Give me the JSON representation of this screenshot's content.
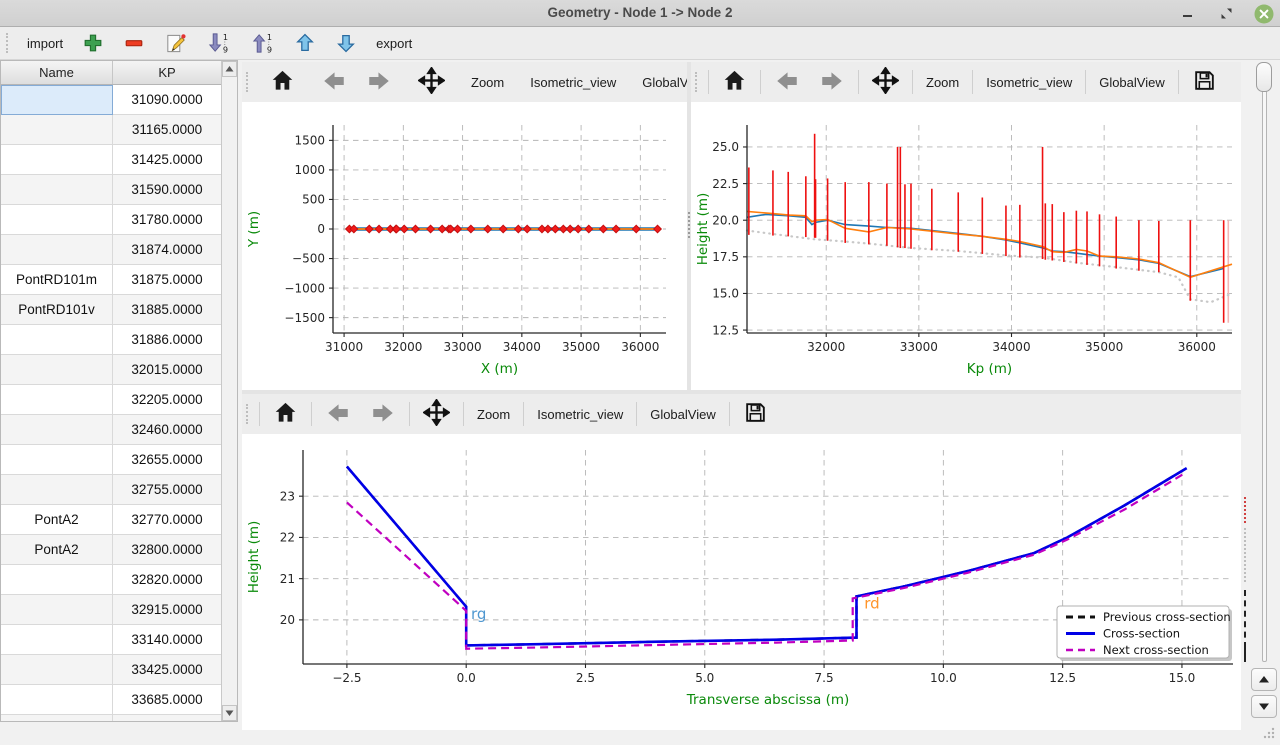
{
  "window": {
    "title": "Geometry - Node 1 -> Node 2"
  },
  "main_toolbar": {
    "items": [
      {
        "name": "import-button",
        "type": "text",
        "label": "import"
      },
      {
        "name": "add-row-button",
        "type": "icon",
        "icon": "add-icon"
      },
      {
        "name": "remove-row-button",
        "type": "icon",
        "icon": "remove-icon"
      },
      {
        "name": "edit-button",
        "type": "icon",
        "icon": "edit-icon"
      },
      {
        "name": "sort-descending-button",
        "type": "icon",
        "icon": "sort-descending-icon"
      },
      {
        "name": "sort-ascending-button",
        "type": "icon",
        "icon": "sort-ascending-icon"
      },
      {
        "name": "move-up-button",
        "type": "icon",
        "icon": "move-up-icon"
      },
      {
        "name": "move-down-button",
        "type": "icon",
        "icon": "move-down-icon"
      },
      {
        "name": "export-button",
        "type": "text",
        "label": "export"
      }
    ]
  },
  "table": {
    "columns": [
      "Name",
      "KP"
    ],
    "selected_cell": {
      "row": 0,
      "col": "name"
    },
    "rows": [
      {
        "name": "",
        "kp": "31090.0000"
      },
      {
        "name": "",
        "kp": "31165.0000"
      },
      {
        "name": "",
        "kp": "31425.0000"
      },
      {
        "name": "",
        "kp": "31590.0000"
      },
      {
        "name": "",
        "kp": "31780.0000"
      },
      {
        "name": "",
        "kp": "31874.0000"
      },
      {
        "name": "PontRD101m",
        "kp": "31875.0000"
      },
      {
        "name": "PontRD101v",
        "kp": "31885.0000"
      },
      {
        "name": "",
        "kp": "31886.0000"
      },
      {
        "name": "",
        "kp": "32015.0000"
      },
      {
        "name": "",
        "kp": "32205.0000"
      },
      {
        "name": "",
        "kp": "32460.0000"
      },
      {
        "name": "",
        "kp": "32655.0000"
      },
      {
        "name": "",
        "kp": "32755.0000"
      },
      {
        "name": "PontA2",
        "kp": "32770.0000"
      },
      {
        "name": "PontA2",
        "kp": "32800.0000"
      },
      {
        "name": "",
        "kp": "32820.0000"
      },
      {
        "name": "",
        "kp": "32915.0000"
      },
      {
        "name": "",
        "kp": "33140.0000"
      },
      {
        "name": "",
        "kp": "33425.0000"
      },
      {
        "name": "",
        "kp": "33685.0000"
      },
      {
        "name": "",
        "kp": ""
      }
    ]
  },
  "plot_toolbar": {
    "zoom_label": "Zoom",
    "isometric_label": "Isometric_view",
    "globalview_label": "GlobalView",
    "overflow_label": "»"
  },
  "colors": {
    "axis_label_green": "#0a8a0a",
    "mpl_blue": "#1f77b4",
    "mpl_orange": "#ff7f0e",
    "red": "#ee1010",
    "cross_blue": "#0000e6",
    "next_magenta": "#c000c0",
    "prev_black": "#111111",
    "selection_blue": "#dcebfa"
  },
  "chart_data": [
    {
      "id": "plan",
      "type": "line",
      "xlabel": "X (m)",
      "ylabel": "Y (m)",
      "xlim": [
        30813,
        36433
      ],
      "ylim": [
        -1760,
        1760
      ],
      "xticks": [
        31000,
        32000,
        33000,
        34000,
        35000,
        36000
      ],
      "xtick_labels": [
        "31000",
        "32000",
        "33000",
        "34000",
        "35000",
        "36000"
      ],
      "yticks": [
        -1500,
        -1000,
        -500,
        0,
        500,
        1000,
        1500
      ],
      "ytick_labels": [
        "−1500",
        "−1000",
        "−500",
        "0",
        "500",
        "1000",
        "1500"
      ],
      "margins": {
        "l": 91,
        "r": 21,
        "t": 23,
        "b": 57
      },
      "series": [
        {
          "name": "river-axis-blue",
          "color": "#1f77b4",
          "width": 3.6,
          "x": [
            31090,
            36290
          ],
          "y": [
            0,
            0
          ]
        },
        {
          "name": "river-axis-orange",
          "color": "#ff7f0e",
          "width": 1.8,
          "x": [
            31090,
            36290
          ],
          "y": [
            0,
            0
          ]
        }
      ],
      "markers": {
        "name": "cross-section-positions",
        "shape": "diamond",
        "color": "#f21b1b",
        "edge": "#c40f0f",
        "size": 3.8,
        "y": 0,
        "x": [
          31090,
          31165,
          31425,
          31590,
          31780,
          31875,
          31885,
          32015,
          32205,
          32460,
          32655,
          32770,
          32800,
          32915,
          33140,
          33425,
          33685,
          33940,
          34090,
          34340,
          34440,
          34565,
          34700,
          34815,
          34950,
          35130,
          35375,
          35590,
          35930,
          36290
        ]
      }
    },
    {
      "id": "profile",
      "type": "line",
      "xlabel": "Kp (m)",
      "ylabel": "Height (m)",
      "xlim": [
        31145,
        36380
      ],
      "ylim": [
        12.3,
        26.5
      ],
      "xticks": [
        32000,
        33000,
        34000,
        35000,
        36000
      ],
      "xtick_labels": [
        "32000",
        "33000",
        "34000",
        "35000",
        "36000"
      ],
      "yticks": [
        12.5,
        15.0,
        17.5,
        20.0,
        22.5,
        25.0
      ],
      "ytick_labels": [
        "12.5",
        "15.0",
        "17.5",
        "20.0",
        "22.5",
        "25.0"
      ],
      "margins": {
        "l": 56,
        "r": 9,
        "t": 23,
        "b": 57
      },
      "vline_color": "#ee1010",
      "vlines_light": {
        "color": "#f3b6b6",
        "data": [
          [
            36340,
            13.0,
            20.0
          ]
        ]
      },
      "vlines": [
        [
          31165,
          19.0,
          23.6
        ],
        [
          31425,
          18.95,
          23.4
        ],
        [
          31590,
          18.9,
          23.3
        ],
        [
          31780,
          18.85,
          23.0
        ],
        [
          31875,
          18.8,
          25.9
        ],
        [
          31885,
          18.8,
          22.8
        ],
        [
          32015,
          18.6,
          22.85
        ],
        [
          32205,
          18.45,
          22.6
        ],
        [
          32460,
          18.35,
          22.6
        ],
        [
          32655,
          18.25,
          22.5
        ],
        [
          32770,
          18.15,
          25.0
        ],
        [
          32800,
          18.1,
          25.0
        ],
        [
          32850,
          18.1,
          22.45
        ],
        [
          32915,
          18.05,
          22.5
        ],
        [
          33140,
          17.95,
          22.15
        ],
        [
          33425,
          17.85,
          21.9
        ],
        [
          33685,
          17.7,
          21.55
        ],
        [
          33940,
          17.55,
          21.0
        ],
        [
          34090,
          17.45,
          21.05
        ],
        [
          34335,
          17.35,
          25.0
        ],
        [
          34365,
          17.3,
          21.15
        ],
        [
          34440,
          17.25,
          21.1
        ],
        [
          34565,
          17.15,
          20.55
        ],
        [
          34700,
          17.05,
          20.65
        ],
        [
          34815,
          16.95,
          20.6
        ],
        [
          34950,
          16.85,
          20.4
        ],
        [
          35130,
          16.7,
          20.25
        ],
        [
          35375,
          16.55,
          20.0
        ],
        [
          35590,
          16.45,
          19.95
        ],
        [
          35930,
          14.5,
          20.0
        ],
        [
          36290,
          13.0,
          20.0
        ]
      ],
      "series": [
        {
          "name": "bottom-dotted",
          "color": "#c8c8c8",
          "width": 2.2,
          "dash": "0.6 5",
          "cap": "round",
          "x": [
            31145,
            31500,
            31875,
            32205,
            32460,
            32915,
            33425,
            33940,
            34340,
            34700,
            35130,
            35590,
            35800,
            35930,
            36150,
            36380
          ],
          "y": [
            19.3,
            19.0,
            18.7,
            18.55,
            18.4,
            18.1,
            17.9,
            17.6,
            17.45,
            17.1,
            16.8,
            16.45,
            16.1,
            14.6,
            14.4,
            15.0
          ]
        },
        {
          "name": "left-bank-blue",
          "color": "#1f77b4",
          "width": 1.6,
          "x": [
            31145,
            31350,
            31600,
            31780,
            31845,
            31885,
            32015,
            32205,
            32460,
            32655,
            32915,
            33140,
            33425,
            33685,
            33940,
            34090,
            34340,
            34440,
            34565,
            34700,
            34815,
            34950,
            35130,
            35375,
            35590,
            35930,
            36290
          ],
          "y": [
            20.2,
            20.4,
            20.3,
            20.2,
            19.7,
            19.85,
            20.0,
            19.7,
            19.6,
            19.5,
            19.45,
            19.3,
            19.1,
            18.9,
            18.65,
            18.45,
            18.1,
            17.9,
            17.85,
            17.75,
            17.65,
            17.55,
            17.45,
            17.3,
            17.05,
            16.15,
            16.7
          ]
        },
        {
          "name": "right-bank-orange",
          "color": "#ff7f0e",
          "width": 1.6,
          "x": [
            31145,
            31425,
            31600,
            31780,
            31845,
            31885,
            32015,
            32205,
            32460,
            32655,
            32915,
            33140,
            33425,
            33685,
            33940,
            34090,
            34340,
            34440,
            34565,
            34700,
            34815,
            34950,
            35130,
            35375,
            35590,
            35930,
            36380
          ],
          "y": [
            20.6,
            20.45,
            20.35,
            20.3,
            19.9,
            20.0,
            20.05,
            19.45,
            19.2,
            19.5,
            19.4,
            19.25,
            19.05,
            18.9,
            18.7,
            18.55,
            18.2,
            17.85,
            17.8,
            18.0,
            17.9,
            17.55,
            17.5,
            17.35,
            17.1,
            16.1,
            17.0
          ]
        }
      ]
    },
    {
      "id": "cross-section",
      "type": "line",
      "xlabel": "Transverse abscissa (m)",
      "ylabel": "Height (m)",
      "xlim": [
        -3.42,
        16.07
      ],
      "ylim": [
        18.93,
        24.12
      ],
      "xticks": [
        -2.5,
        0.0,
        2.5,
        5.0,
        7.5,
        10.0,
        12.5,
        15.0
      ],
      "xtick_labels": [
        "−2.5",
        "0.0",
        "2.5",
        "5.0",
        "7.5",
        "10.0",
        "12.5",
        "15.0"
      ],
      "yticks": [
        20,
        21,
        22,
        23
      ],
      "ytick_labels": [
        "20",
        "21",
        "22",
        "23"
      ],
      "margins": {
        "l": 61,
        "r": 7,
        "t": 16,
        "b": 66
      },
      "series": [
        {
          "name": "Previous cross-section",
          "color": "#111111",
          "width": 2.4,
          "dash": "8 5",
          "x": [
            -2.5,
            0,
            0,
            1.5,
            4,
            6.5,
            8.18,
            8.18,
            9.2,
            10.5,
            11.9,
            12.6,
            13.8,
            15.1
          ],
          "y": [
            23.72,
            20.32,
            19.38,
            19.41,
            19.47,
            19.52,
            19.57,
            20.57,
            20.82,
            21.18,
            21.62,
            22.0,
            22.78,
            23.68
          ]
        },
        {
          "name": "Cross-section",
          "color": "#0000e6",
          "width": 2.6,
          "x": [
            -2.5,
            0,
            0,
            1.5,
            4,
            6.5,
            8.18,
            8.18,
            9.2,
            10.5,
            11.9,
            12.6,
            13.8,
            15.1
          ],
          "y": [
            23.72,
            20.32,
            19.38,
            19.41,
            19.47,
            19.52,
            19.57,
            20.57,
            20.82,
            21.18,
            21.62,
            22.0,
            22.78,
            23.68
          ]
        },
        {
          "name": "Next cross-section",
          "color": "#c000c0",
          "width": 2.2,
          "dash": "8 5",
          "x": [
            -2.5,
            0,
            0,
            1.5,
            4,
            6.5,
            8.1,
            8.1,
            9.2,
            10.5,
            11.9,
            12.6,
            13.8,
            15.05
          ],
          "y": [
            22.85,
            20.22,
            19.3,
            19.33,
            19.39,
            19.45,
            19.5,
            20.52,
            20.78,
            21.14,
            21.58,
            21.95,
            22.68,
            23.55
          ]
        }
      ],
      "annotations": [
        {
          "text": "rg",
          "x": 0.08,
          "y": 20.02,
          "color": "#4f97d0"
        },
        {
          "text": "rd",
          "x": 8.32,
          "y": 20.28,
          "color": "#ff9429"
        }
      ],
      "legend": {
        "entries": [
          {
            "label": "Previous cross-section",
            "color": "#111111",
            "dash": "7 5",
            "width": 3
          },
          {
            "label": "Cross-section",
            "color": "#0000e6",
            "dash": null,
            "width": 3
          },
          {
            "label": "Next cross-section",
            "color": "#c000c0",
            "dash": "7 5",
            "width": 2.5
          }
        ]
      }
    }
  ]
}
